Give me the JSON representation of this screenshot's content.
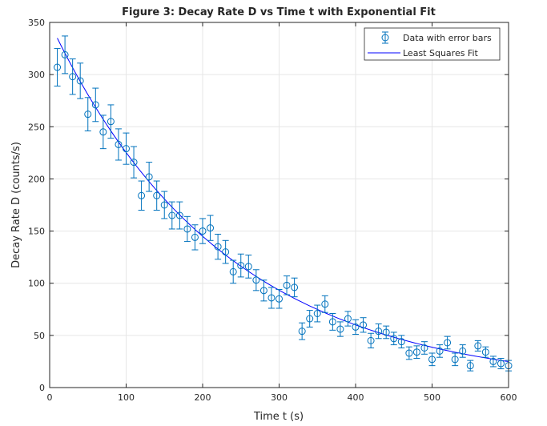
{
  "chart_data": {
    "type": "scatter",
    "title": "Figure 3: Decay Rate D vs Time t with Exponential Fit",
    "xlabel": "Time t (s)",
    "ylabel": "Decay Rate D (counts/s)",
    "xlim": [
      0,
      600
    ],
    "ylim": [
      0,
      350
    ],
    "x_ticks": [
      0,
      100,
      200,
      300,
      400,
      500,
      600
    ],
    "y_ticks": [
      0,
      50,
      100,
      150,
      200,
      250,
      300,
      350
    ],
    "grid": true,
    "legend_position": "top-right",
    "colors": {
      "data": "#0072BD",
      "fit": "#0000FF",
      "grid": "#e6e6e6",
      "axes": "#262626"
    },
    "series": [
      {
        "name": "Data with error bars",
        "kind": "errorbar",
        "x": [
          10,
          20,
          30,
          40,
          50,
          60,
          70,
          80,
          90,
          100,
          110,
          120,
          130,
          140,
          150,
          160,
          170,
          180,
          190,
          200,
          210,
          220,
          230,
          240,
          250,
          260,
          270,
          280,
          290,
          300,
          310,
          320,
          330,
          340,
          350,
          360,
          370,
          380,
          390,
          400,
          410,
          420,
          430,
          440,
          450,
          460,
          470,
          480,
          490,
          500,
          510,
          520,
          530,
          540,
          550,
          560,
          570,
          580,
          590,
          600
        ],
        "y": [
          307,
          319,
          298,
          294,
          262,
          271,
          245,
          255,
          233,
          229,
          216,
          184,
          202,
          184,
          175,
          165,
          165,
          152,
          144,
          150,
          153,
          135,
          130,
          111,
          117,
          116,
          103,
          93,
          86,
          85,
          98,
          96,
          54,
          66,
          71,
          80,
          63,
          56,
          66,
          58,
          60,
          45,
          54,
          53,
          47,
          44,
          33,
          34,
          38,
          27,
          35,
          43,
          27,
          35,
          21,
          40,
          34,
          25,
          23,
          21
        ],
        "error": [
          18,
          18,
          17,
          17,
          16,
          16,
          16,
          16,
          15,
          15,
          15,
          14,
          14,
          14,
          13,
          13,
          13,
          12,
          12,
          12,
          12,
          12,
          11,
          11,
          11,
          11,
          10,
          10,
          10,
          9,
          9,
          9,
          8,
          8,
          8,
          8,
          8,
          7,
          7,
          7,
          7,
          7,
          7,
          6,
          6,
          6,
          6,
          6,
          6,
          6,
          6,
          6,
          6,
          6,
          5,
          5,
          5,
          5,
          5,
          5
        ]
      },
      {
        "name": "Least Squares Fit",
        "kind": "line",
        "model": "exponential",
        "A": 350,
        "tau": 227,
        "x_range": [
          10,
          600
        ]
      }
    ]
  }
}
